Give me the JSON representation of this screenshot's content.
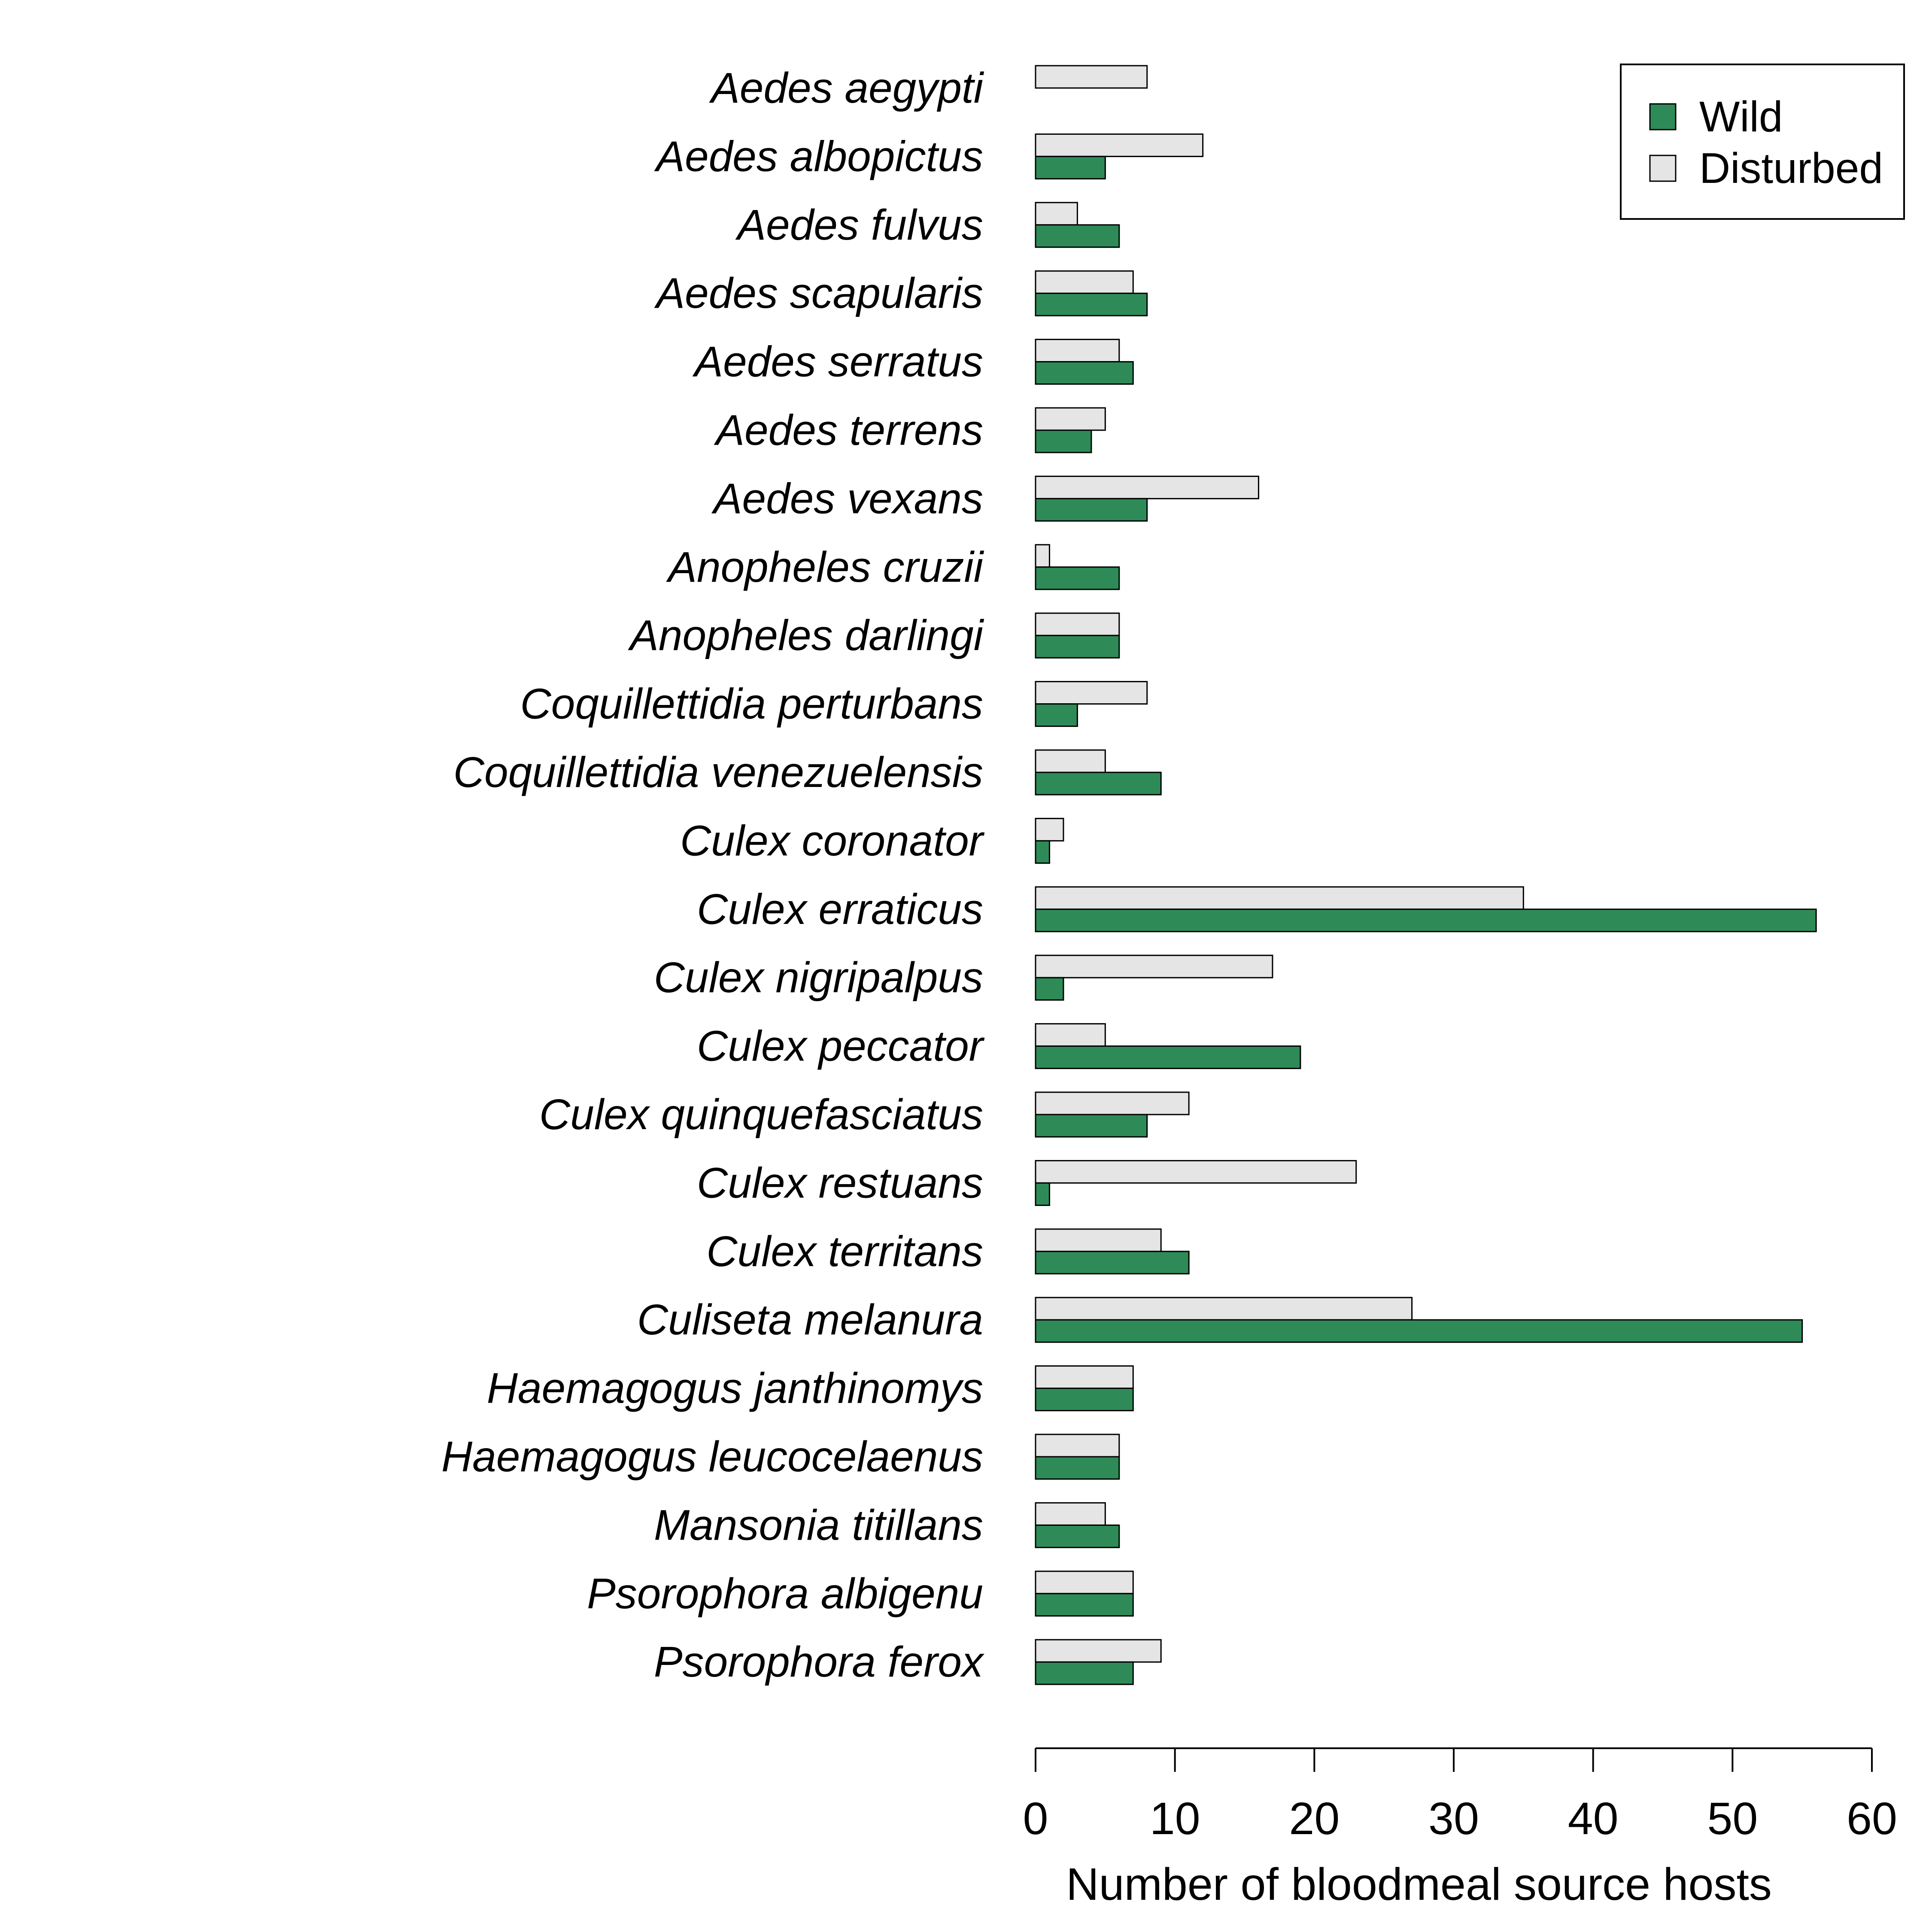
{
  "chart_data": {
    "type": "bar",
    "orientation": "horizontal",
    "categories": [
      "Aedes aegypti",
      "Aedes albopictus",
      "Aedes fulvus",
      "Aedes scapularis",
      "Aedes serratus",
      "Aedes terrens",
      "Aedes vexans",
      "Anopheles cruzii",
      "Anopheles darlingi",
      "Coquillettidia perturbans",
      "Coquillettidia venezuelensis",
      "Culex coronator",
      "Culex erraticus",
      "Culex nigripalpus",
      "Culex peccator",
      "Culex quinquefasciatus",
      "Culex restuans",
      "Culex territans",
      "Culiseta melanura",
      "Haemagogus janthinomys",
      "Haemagogus leucocelaenus",
      "Mansonia titillans",
      "Psorophora albigenu",
      "Psorophora ferox"
    ],
    "series": [
      {
        "name": "Wild",
        "color": "#2e8b57",
        "values": [
          0,
          5,
          6,
          8,
          7,
          4,
          8,
          6,
          6,
          3,
          9,
          1,
          56,
          2,
          19,
          8,
          1,
          11,
          55,
          7,
          6,
          6,
          7,
          7
        ]
      },
      {
        "name": "Disturbed",
        "color": "#e5e5e5",
        "values": [
          8,
          12,
          3,
          7,
          6,
          5,
          16,
          1,
          6,
          8,
          5,
          2,
          35,
          17,
          5,
          11,
          23,
          9,
          27,
          7,
          6,
          5,
          7,
          9
        ]
      }
    ],
    "xlabel": "Number of bloodmeal source hosts",
    "xlim": [
      0,
      60
    ],
    "xticks": [
      "0",
      "10",
      "20",
      "30",
      "40",
      "50",
      "60"
    ],
    "grid": false,
    "legend_position": "top-right",
    "legend_entries": [
      "Wild",
      "Disturbed"
    ]
  }
}
